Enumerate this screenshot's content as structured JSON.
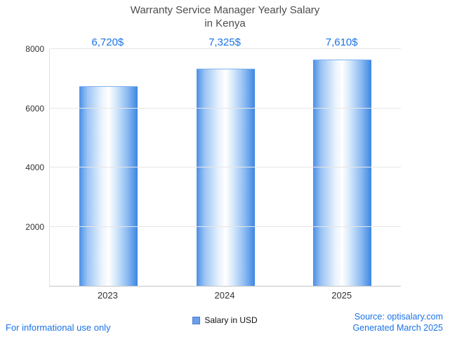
{
  "title_line1": "Warranty Service Manager Yearly Salary",
  "title_line2": "in Kenya",
  "chart_data": {
    "type": "bar",
    "title": "Warranty Service Manager Yearly Salary in Kenya",
    "categories": [
      "2023",
      "2024",
      "2025"
    ],
    "values": [
      6720,
      7325,
      7610
    ],
    "value_labels": [
      "6,720$",
      "7,325$",
      "7,610$"
    ],
    "series_name": "Salary in USD",
    "xlabel": "",
    "ylabel": "",
    "ylim": [
      0,
      8000
    ],
    "yticks": [
      2000,
      4000,
      6000,
      8000
    ],
    "grid": true,
    "legend_position": "bottom",
    "bar_color": "#3d86e2",
    "bar_gradient": "blue-white-blue horizontal cylinder",
    "value_label_color": "#1a73e8"
  },
  "legend": {
    "label": "Salary in USD"
  },
  "footer": {
    "left": "For informational use only",
    "source": "Source: optisalary.com",
    "generated": "Generated March 2025"
  },
  "colors": {
    "accent_blue": "#1a73e8",
    "title_gray": "#4d4d4d",
    "gridline": "#e6e6e6"
  }
}
